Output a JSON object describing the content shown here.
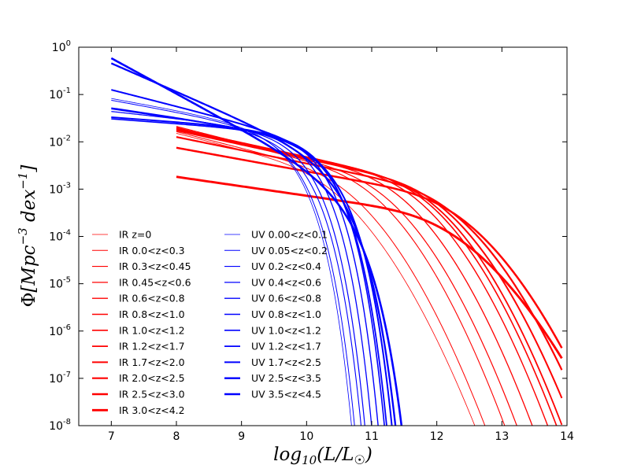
{
  "chart_data": {
    "type": "line",
    "title": "",
    "xlabel": "log10(L/L_sun)",
    "ylabel": "Phi[Mpc^-3 dex^-1]",
    "xlabel_parts": {
      "func": "log",
      "sub": "10",
      "rest": "(L/L",
      "sun": "☉",
      "close": ")"
    },
    "ylabel_parts": {
      "phi": "Φ",
      "open": "[Mpc",
      "exp1": "−3",
      "mid": " dex",
      "exp2": "−1",
      "close": "]"
    },
    "xlim": [
      6.5,
      14
    ],
    "ylim_log10": [
      -8,
      0
    ],
    "xticks": [
      "7",
      "8",
      "9",
      "10",
      "11",
      "12",
      "13",
      "14"
    ],
    "yticks": [
      {
        "base": "10",
        "exp": "0"
      },
      {
        "base": "10",
        "exp": "-1"
      },
      {
        "base": "10",
        "exp": "-2"
      },
      {
        "base": "10",
        "exp": "-3"
      },
      {
        "base": "10",
        "exp": "-4"
      },
      {
        "base": "10",
        "exp": "-5"
      },
      {
        "base": "10",
        "exp": "-6"
      },
      {
        "base": "10",
        "exp": "-7"
      },
      {
        "base": "10",
        "exp": "-8"
      }
    ],
    "legend_position": "lower-left, two columns",
    "ir_color": "#ff0000",
    "uv_color": "#0000ff",
    "ir_series": [
      {
        "name": "IR z=0",
        "x0": 8.0,
        "phi_star": -2.38,
        "logL_star": 9.6,
        "alpha": 1.35,
        "sigma": 0.65,
        "width": 0.8
      },
      {
        "name": "IR 0.0<z<0.3",
        "x0": 8.0,
        "phi_star": -2.45,
        "logL_star": 9.9,
        "alpha": 1.35,
        "sigma": 0.62,
        "width": 1.0
      },
      {
        "name": "IR 0.3<z<0.45",
        "x0": 8.0,
        "phi_star": -2.5,
        "logL_star": 10.3,
        "alpha": 1.35,
        "sigma": 0.6,
        "width": 1.1
      },
      {
        "name": "IR 0.45<z<0.6",
        "x0": 8.0,
        "phi_star": -2.55,
        "logL_star": 10.5,
        "alpha": 1.35,
        "sigma": 0.6,
        "width": 1.2
      },
      {
        "name": "IR 0.6<z<0.8",
        "x0": 8.0,
        "phi_star": -2.55,
        "logL_star": 10.7,
        "alpha": 1.3,
        "sigma": 0.6,
        "width": 1.3
      },
      {
        "name": "IR 0.8<z<1.0",
        "x0": 8.0,
        "phi_star": -2.6,
        "logL_star": 10.95,
        "alpha": 1.3,
        "sigma": 0.6,
        "width": 1.4
      },
      {
        "name": "IR 1.0<z<1.2",
        "x0": 8.0,
        "phi_star": -2.65,
        "logL_star": 11.1,
        "alpha": 1.3,
        "sigma": 0.6,
        "width": 1.6
      },
      {
        "name": "IR 1.2<z<1.7",
        "x0": 8.0,
        "phi_star": -2.7,
        "logL_star": 11.2,
        "alpha": 1.3,
        "sigma": 0.6,
        "width": 1.8
      },
      {
        "name": "IR 1.7<z<2.0",
        "x0": 8.0,
        "phi_star": -2.75,
        "logL_star": 11.3,
        "alpha": 1.3,
        "sigma": 0.62,
        "width": 2.0
      },
      {
        "name": "IR 2.0<z<2.5",
        "x0": 8.0,
        "phi_star": -2.85,
        "logL_star": 11.4,
        "alpha": 1.28,
        "sigma": 0.65,
        "width": 2.2
      },
      {
        "name": "IR 2.5<z<3.0",
        "x0": 8.0,
        "phi_star": -3.0,
        "logL_star": 11.5,
        "alpha": 1.25,
        "sigma": 0.68,
        "width": 2.5
      },
      {
        "name": "IR 3.0<z<4.2",
        "x0": 8.0,
        "phi_star": -3.4,
        "logL_star": 11.3,
        "alpha": 1.2,
        "sigma": 0.75,
        "width": 2.9
      }
    ],
    "uv_series": [
      {
        "name": "UV 0.00<z<0.1",
        "x0": 7.0,
        "phi_star": -1.8,
        "logL_star": 9.55,
        "alpha": 1.25,
        "width": 0.8
      },
      {
        "name": "UV 0.05<z<0.2",
        "x0": 7.0,
        "phi_star": -1.85,
        "logL_star": 9.6,
        "alpha": 1.25,
        "width": 1.0
      },
      {
        "name": "UV 0.2<z<0.4",
        "x0": 7.0,
        "phi_star": -1.9,
        "logL_star": 9.7,
        "alpha": 1.2,
        "width": 1.1
      },
      {
        "name": "UV 0.4<z<0.6",
        "x0": 7.0,
        "phi_star": -1.85,
        "logL_star": 9.75,
        "alpha": 1.15,
        "width": 1.2
      },
      {
        "name": "UV 0.6<z<0.8",
        "x0": 7.0,
        "phi_star": -1.85,
        "logL_star": 9.85,
        "alpha": 1.1,
        "width": 1.3
      },
      {
        "name": "UV 0.8<z<1.0",
        "x0": 7.0,
        "phi_star": -1.85,
        "logL_star": 9.95,
        "alpha": 1.1,
        "width": 1.4
      },
      {
        "name": "UV 1.0<z<1.2",
        "x0": 7.0,
        "phi_star": -1.9,
        "logL_star": 10.05,
        "alpha": 1.1,
        "width": 1.6
      },
      {
        "name": "UV 1.2<z<1.7",
        "x0": 7.0,
        "phi_star": -2.0,
        "logL_star": 10.1,
        "alpha": 1.2,
        "width": 1.8
      },
      {
        "name": "UV 1.7<z<2.5",
        "x0": 7.0,
        "phi_star": -2.1,
        "logL_star": 10.2,
        "alpha": 1.35,
        "width": 2.0
      },
      {
        "name": "UV 2.5<z<3.5",
        "x0": 7.0,
        "phi_star": -2.4,
        "logL_star": 10.3,
        "alpha": 1.6,
        "width": 2.3
      },
      {
        "name": "UV 3.5<z<4.5",
        "x0": 7.0,
        "phi_star": -2.9,
        "logL_star": 10.45,
        "alpha": 1.75,
        "width": 2.6
      }
    ]
  }
}
